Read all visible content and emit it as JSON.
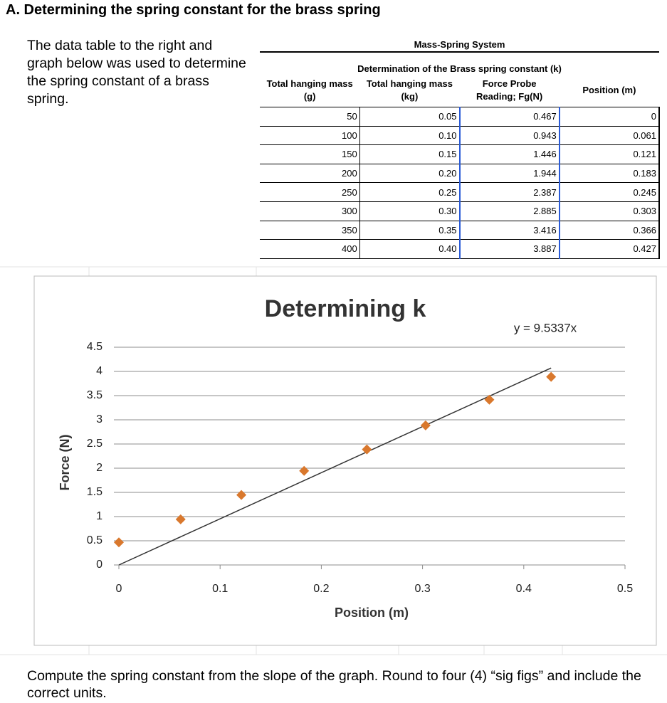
{
  "heading": "A. Determining the spring constant for the brass spring",
  "intro": "The data table to the right and graph below was used to determine the spring constant of a brass spring.",
  "table": {
    "title": "Mass-Spring System",
    "subtitle": "Determination of the Brass spring constant (k)",
    "headers": [
      "Total hanging mass (g)",
      "Total hanging mass (kg)",
      "Force Probe Reading; Fg(N)",
      "Position (m)"
    ],
    "rows": [
      [
        "50",
        "0.05",
        "0.467",
        "0"
      ],
      [
        "100",
        "0.10",
        "0.943",
        "0.061"
      ],
      [
        "150",
        "0.15",
        "1.446",
        "0.121"
      ],
      [
        "200",
        "0.20",
        "1.944",
        "0.183"
      ],
      [
        "250",
        "0.25",
        "2.387",
        "0.245"
      ],
      [
        "300",
        "0.30",
        "2.885",
        "0.303"
      ],
      [
        "350",
        "0.35",
        "3.416",
        "0.366"
      ],
      [
        "400",
        "0.40",
        "3.887",
        "0.427"
      ]
    ]
  },
  "chart_data": {
    "type": "scatter",
    "title": "Determining k",
    "x_label": "Position (m)",
    "y_label": "Force (N)",
    "x": [
      0,
      0.061,
      0.121,
      0.183,
      0.245,
      0.303,
      0.366,
      0.427
    ],
    "values": [
      0.467,
      0.943,
      1.446,
      1.944,
      2.387,
      2.885,
      3.416,
      3.887
    ],
    "color": "#d9782d",
    "xlim": [
      0,
      0.5
    ],
    "xticks": [
      0,
      0.1,
      0.2,
      0.3,
      0.4,
      0.5
    ],
    "ylim": [
      0,
      4.5
    ],
    "yticks": [
      0,
      0.5,
      1,
      1.5,
      2,
      2.5,
      3,
      3.5,
      4,
      4.5
    ],
    "grid": true,
    "trendline": {
      "label": "y = 9.5337x",
      "slope": 9.5337,
      "color": "#333333"
    }
  },
  "question": "Compute the spring constant from the slope of the graph.  Round to four (4) “sig figs” and include the correct units."
}
